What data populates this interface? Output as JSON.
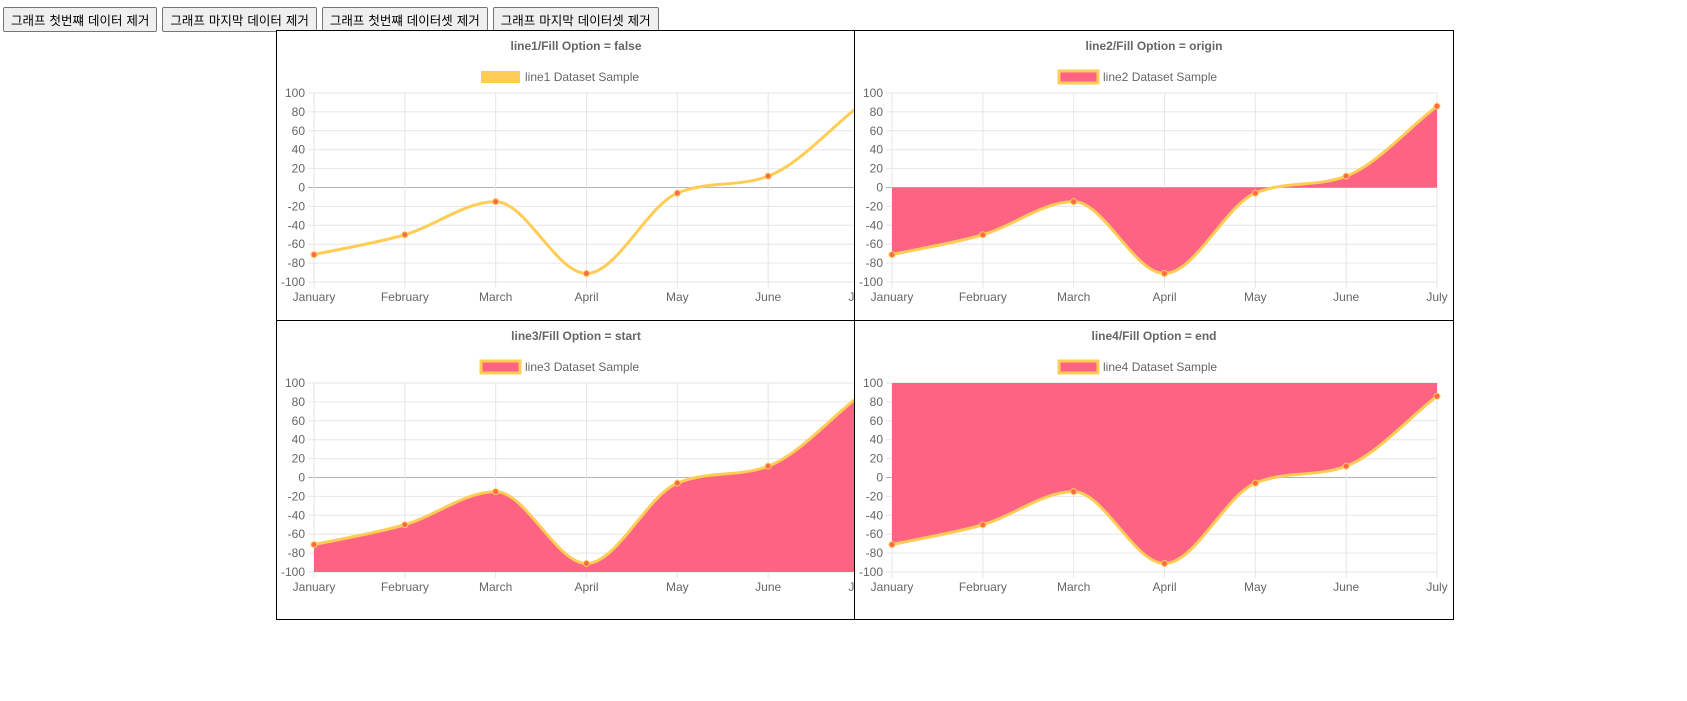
{
  "buttons": {
    "remove_first_data": "그래프 첫번쨰 데이터 제거",
    "remove_last_data": "그래프 마지막 데이터 제거",
    "remove_first_dataset": "그래프 첫번쨰 데이터셋 제거",
    "remove_last_dataset": "그래프 마지막 데이터셋 제거"
  },
  "colors": {
    "line": "#ffcd56",
    "fill": "#ff6384",
    "point": "#ff6a4a",
    "grid": "#e6e6e6",
    "zero_line": "#b4b4b4",
    "text": "#666666"
  },
  "chart_data": [
    {
      "type": "line",
      "fill": "false",
      "title": "line1/Fill Option = false",
      "categories": [
        "January",
        "February",
        "March",
        "April",
        "May",
        "June",
        "July"
      ],
      "series": [
        {
          "name": "line1 Dataset Sample",
          "values": [
            -71,
            -50,
            -15,
            -91,
            -6,
            12,
            86
          ]
        }
      ],
      "yticks": [
        "100",
        "80",
        "60",
        "40",
        "20",
        "0",
        "-20",
        "-40",
        "-60",
        "-80",
        "-100"
      ],
      "ylim": [
        -100,
        100
      ],
      "legend": "top-center"
    },
    {
      "type": "area",
      "fill": "origin",
      "title": "line2/Fill Option = origin",
      "categories": [
        "January",
        "February",
        "March",
        "April",
        "May",
        "June",
        "July"
      ],
      "series": [
        {
          "name": "line2 Dataset Sample",
          "values": [
            -71,
            -50,
            -15,
            -91,
            -6,
            12,
            86
          ]
        }
      ],
      "yticks": [
        "100",
        "80",
        "60",
        "40",
        "20",
        "0",
        "-20",
        "-40",
        "-60",
        "-80",
        "-100"
      ],
      "ylim": [
        -100,
        100
      ],
      "legend": "top-center"
    },
    {
      "type": "area",
      "fill": "start",
      "title": "line3/Fill Option = start",
      "categories": [
        "January",
        "February",
        "March",
        "April",
        "May",
        "June",
        "July"
      ],
      "series": [
        {
          "name": "line3 Dataset Sample",
          "values": [
            -71,
            -50,
            -15,
            -91,
            -6,
            12,
            86
          ]
        }
      ],
      "yticks": [
        "100",
        "80",
        "60",
        "40",
        "20",
        "0",
        "-20",
        "-40",
        "-60",
        "-80",
        "-100"
      ],
      "ylim": [
        -100,
        100
      ],
      "legend": "top-center"
    },
    {
      "type": "area",
      "fill": "end",
      "title": "line4/Fill Option = end",
      "categories": [
        "January",
        "February",
        "March",
        "April",
        "May",
        "June",
        "July"
      ],
      "series": [
        {
          "name": "line4 Dataset Sample",
          "values": [
            -71,
            -50,
            -15,
            -91,
            -6,
            12,
            86
          ]
        }
      ],
      "yticks": [
        "100",
        "80",
        "60",
        "40",
        "20",
        "0",
        "-20",
        "-40",
        "-60",
        "-80",
        "-100"
      ],
      "ylim": [
        -100,
        100
      ],
      "legend": "top-center"
    }
  ]
}
